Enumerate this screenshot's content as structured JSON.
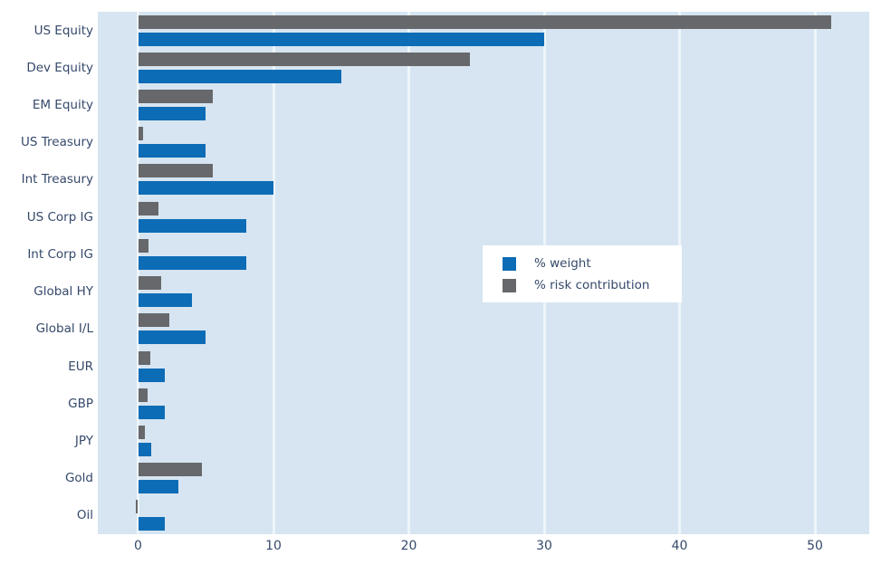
{
  "chart_data": {
    "type": "bar",
    "orientation": "horizontal",
    "title": "",
    "xlabel": "",
    "ylabel": "",
    "categories": [
      "US Equity",
      "Dev Equity",
      "EM Equity",
      "US Treasury",
      "Int Treasury",
      "US Corp IG",
      "Int Corp IG",
      "Global HY",
      "Global I/L",
      "EUR",
      "GBP",
      "JPY",
      "Gold",
      "Oil"
    ],
    "series": [
      {
        "name": "% weight",
        "color": "#0d6cb6",
        "values": [
          30,
          15,
          5,
          5,
          10,
          8,
          8,
          4,
          5,
          2,
          2,
          1,
          3,
          2
        ]
      },
      {
        "name": "% risk contribution",
        "color": "#67686b",
        "values": [
          51.2,
          24.5,
          5.5,
          0.4,
          5.5,
          1.5,
          0.8,
          1.7,
          2.3,
          0.9,
          0.7,
          0.5,
          4.7,
          -0.2
        ]
      }
    ],
    "x_ticks": [
      0,
      10,
      20,
      30,
      40,
      50
    ],
    "xlim": [
      -3,
      54
    ],
    "grid": true,
    "gridline_color": "#eef5fa",
    "plot_background": "#d6e5f1",
    "legend_position": "center-right",
    "legend_background": "#ffffff"
  },
  "text_color": "#35496b"
}
